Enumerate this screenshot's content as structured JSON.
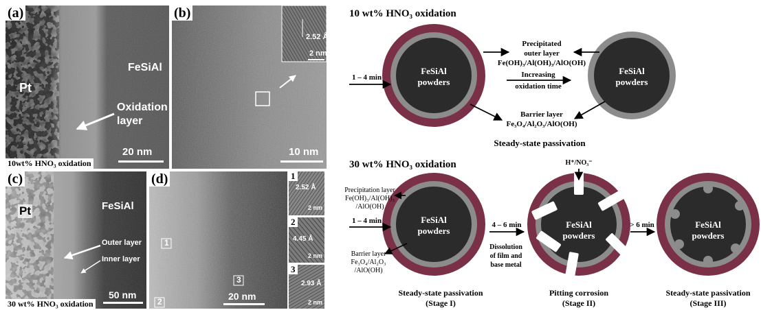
{
  "panels": {
    "a": {
      "label": "(a)",
      "pt_label": "Pt",
      "material_label": "FeSiAl",
      "annotation_line1": "Oxidation",
      "annotation_line2": "layer",
      "scale": "20 nm",
      "caption": "10wt% HNO₃ oxidation"
    },
    "b": {
      "label": "(b)",
      "inset_spacing": "2.52 Å",
      "inset_scale": "2 nm",
      "scale": "10 nm"
    },
    "c": {
      "label": "(c)",
      "pt_label": "Pt",
      "material_label": "FeSiAl",
      "outer_layer": "Outer layer",
      "inner_layer": "Inner layer",
      "scale": "50 nm",
      "caption": "30 wt% HNO₃ oxidation"
    },
    "d": {
      "label": "(d)",
      "region_1": "1",
      "region_2": "2",
      "region_3": "3",
      "scale": "20 nm",
      "insets": [
        {
          "num": "1",
          "spacing": "2.52 Å",
          "scale": "2 nm"
        },
        {
          "num": "2",
          "spacing": "4.45 Å",
          "scale": "2 nm"
        },
        {
          "num": "3",
          "spacing": "2.93 Å",
          "scale": "2 nm"
        }
      ]
    }
  },
  "diagram_top": {
    "title": "10 wt% HNO₃ oxidation",
    "time_label": "1 – 4 min",
    "core_line1": "FeSiAl",
    "core_line2": "powders",
    "outer_line1": "Precipitated",
    "outer_line2": "outer layer",
    "outer_line3": "Fe(OH)₃/Al(OH)₃/AlO(OH)",
    "increasing_line1": "Increasing",
    "increasing_line2": "oxidation time",
    "barrier_line1": "Barrier layer",
    "barrier_line2": "Fe₃O₄/Al₂O₃/AlO(OH)",
    "caption": "Steady-state passivation"
  },
  "diagram_bottom": {
    "title": "30 wt% HNO₃ oxidation",
    "ions": "H⁺/NO₃⁻",
    "precip_line1": "Precipitation layer",
    "precip_line2": "Fe(OH)₃/Al(OH)₃",
    "precip_line3": "/AlO(OH)",
    "time1": "1 – 4 min",
    "barrier_line1": "Barrier layer",
    "barrier_line2": "Fe₃O₄/Al₂O₃",
    "barrier_line3": "/AlO(OH)",
    "core_line1": "FeSiAl",
    "core_line2": "powders",
    "time2": "4 – 6 min",
    "dissolution_line1": "Dissolution",
    "dissolution_line2": "of film and",
    "dissolution_line3": "base metal",
    "time3": "> 6 min",
    "stage1_line1": "Steady-state passivation",
    "stage1_line2": "(Stage I)",
    "stage2_line1": "Pitting corrosion",
    "stage2_line2": "(Stage II)",
    "stage3_line1": "Steady-state passivation",
    "stage3_line2": "(Stage III)"
  },
  "colors": {
    "outer_ring": "#7a3046",
    "barrier_ring": "#8c8c8c",
    "core": "#2b2b2b"
  }
}
